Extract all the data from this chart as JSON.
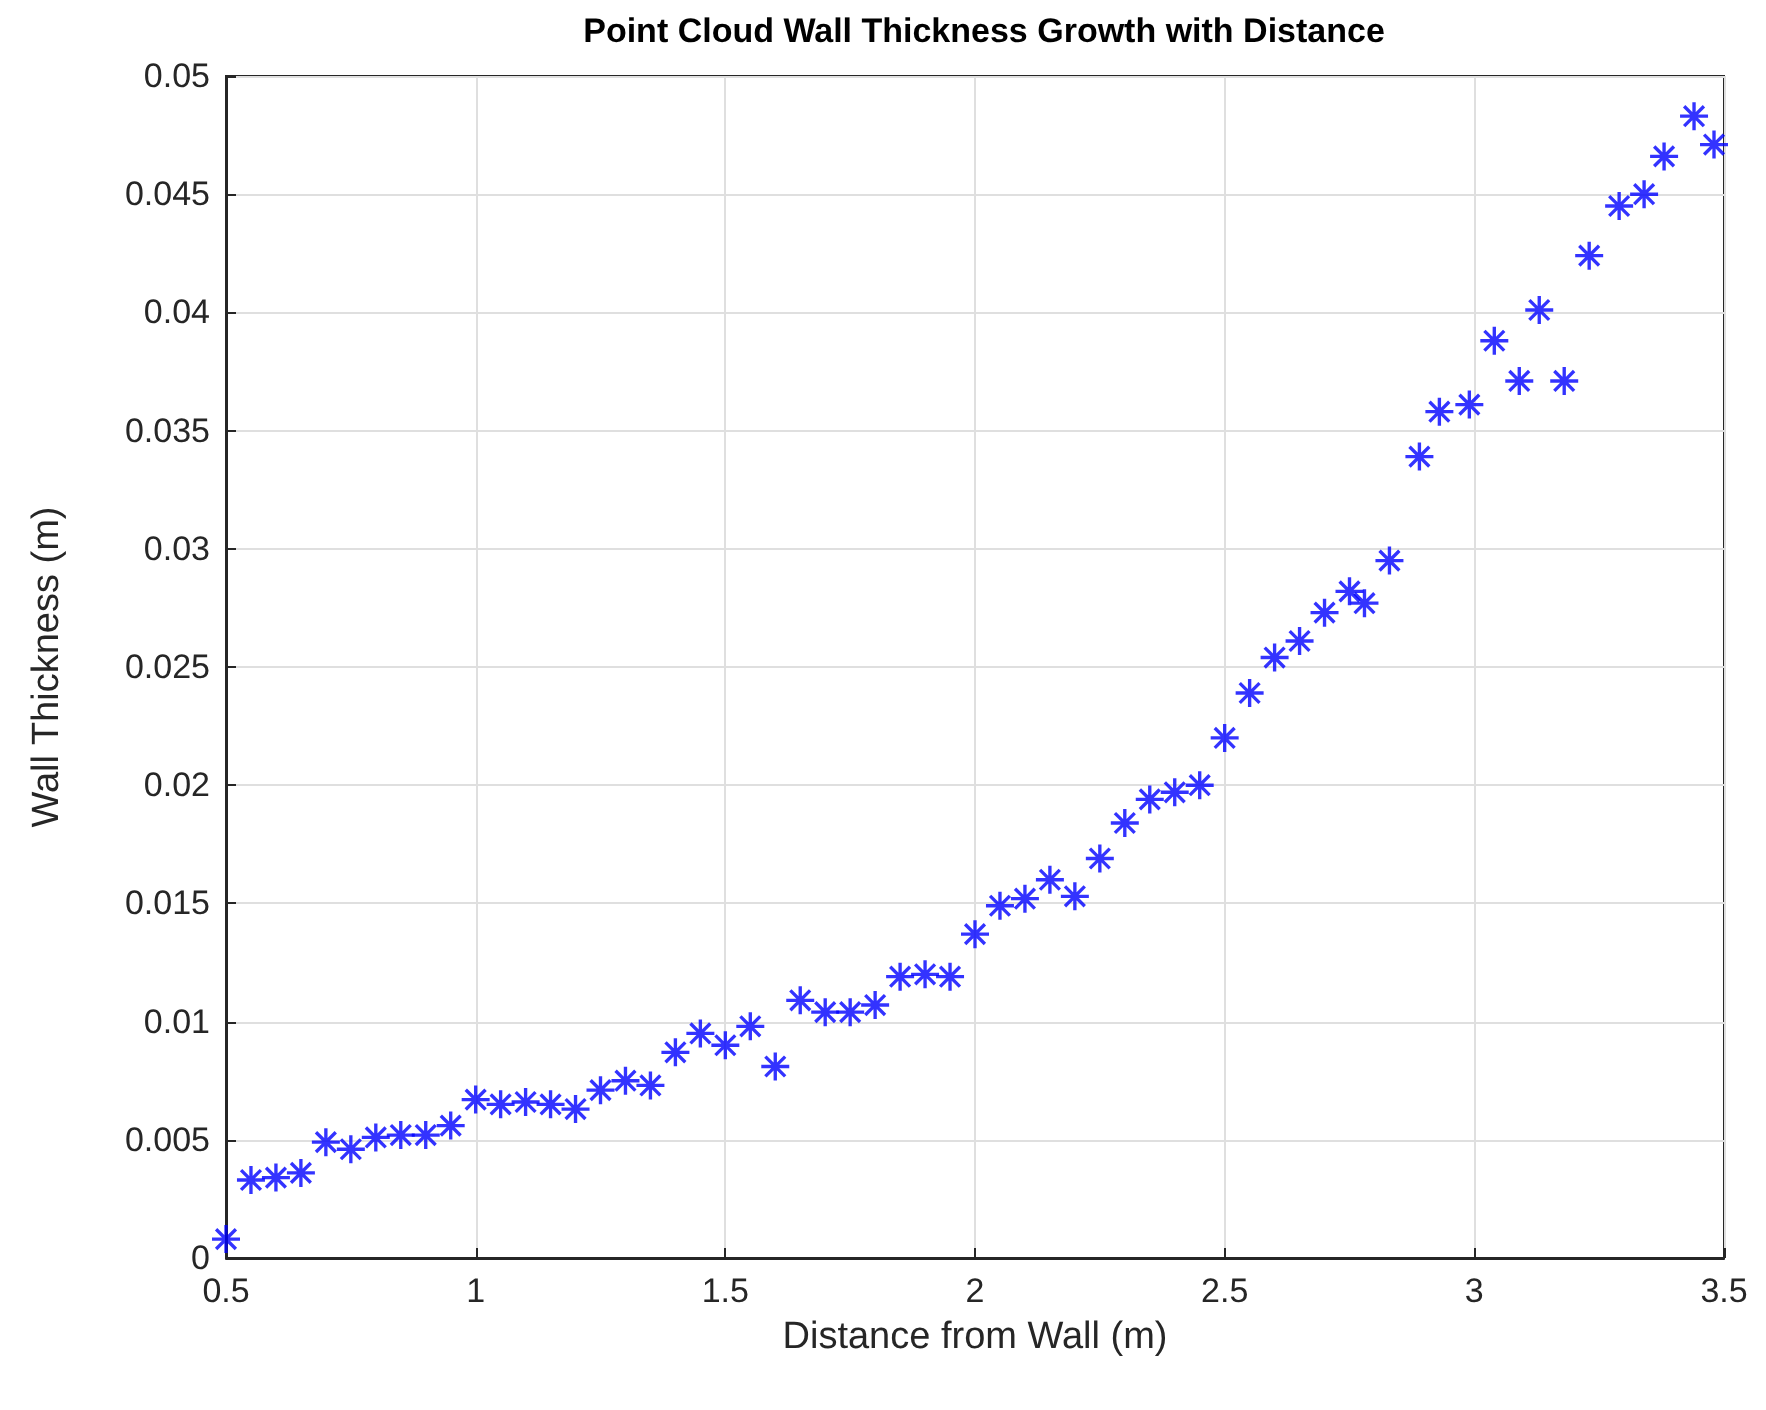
{
  "chart_data": {
    "type": "scatter",
    "title": "Point Cloud Wall Thickness Growth with Distance",
    "xlabel": "Distance from Wall (m)",
    "ylabel": "Wall Thickness (m)",
    "x": [
      0.5,
      0.55,
      0.6,
      0.65,
      0.7,
      0.75,
      0.8,
      0.85,
      0.9,
      0.95,
      1.0,
      1.05,
      1.1,
      1.15,
      1.2,
      1.25,
      1.3,
      1.35,
      1.4,
      1.45,
      1.5,
      1.55,
      1.6,
      1.65,
      1.7,
      1.75,
      1.8,
      1.85,
      1.9,
      1.95,
      2.0,
      2.05,
      2.1,
      2.15,
      2.2,
      2.25,
      2.3,
      2.35,
      2.4,
      2.45,
      2.5,
      2.55,
      2.6,
      2.65,
      2.7,
      2.75,
      2.78,
      2.83,
      2.89,
      2.93,
      2.99,
      3.04,
      3.09,
      3.13,
      3.18,
      3.23,
      3.29,
      3.34,
      3.38,
      3.44,
      3.48
    ],
    "series": [
      {
        "color": "#0000ff",
        "values": [
          0.0008,
          0.0033,
          0.0034,
          0.0036,
          0.0049,
          0.0046,
          0.0051,
          0.0052,
          0.0052,
          0.0056,
          0.0067,
          0.0065,
          0.0066,
          0.0065,
          0.0063,
          0.0071,
          0.0075,
          0.0073,
          0.0087,
          0.0095,
          0.009,
          0.0098,
          0.0081,
          0.0109,
          0.0104,
          0.0104,
          0.0107,
          0.0119,
          0.012,
          0.0119,
          0.0137,
          0.0149,
          0.0152,
          0.016,
          0.0153,
          0.0169,
          0.0184,
          0.0194,
          0.0197,
          0.02,
          0.022,
          0.0239,
          0.0254,
          0.0261,
          0.0273,
          0.0282,
          0.0277,
          0.0295,
          0.0339,
          0.0358,
          0.0361,
          0.0388,
          0.0371,
          0.0401,
          0.0371,
          0.0424,
          0.0445,
          0.045,
          0.0466,
          0.0483,
          0.0471
        ]
      }
    ],
    "xlim": [
      0.5,
      3.5
    ],
    "xticks": [
      0.5,
      1,
      1.5,
      2,
      2.5,
      3,
      3.5
    ],
    "ylim": [
      0,
      0.05
    ],
    "yticks": [
      0,
      0.005,
      0.01,
      0.015,
      0.02,
      0.025,
      0.03,
      0.035,
      0.04,
      0.045,
      0.05
    ],
    "grid": true,
    "marker": "star"
  }
}
